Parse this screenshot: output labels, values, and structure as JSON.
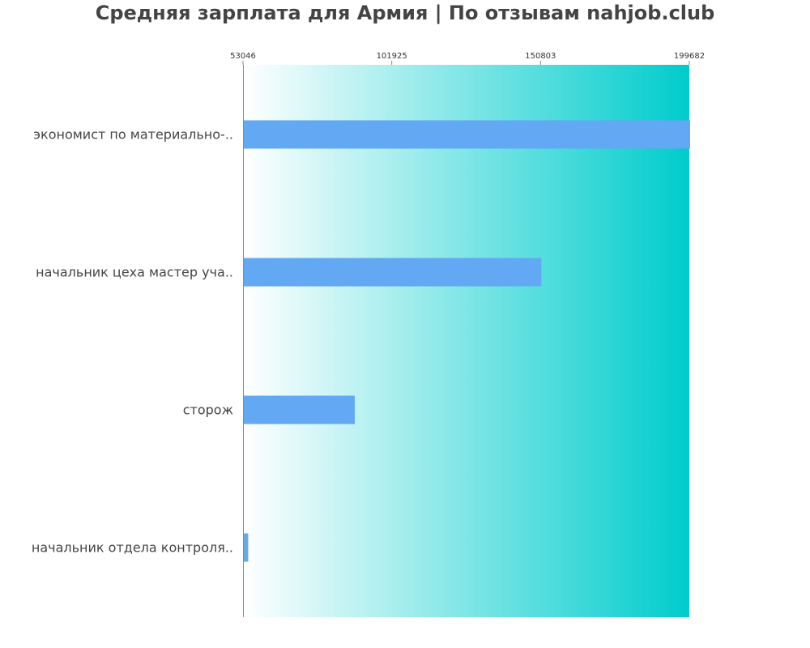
{
  "colors": {
    "bar": "#63a8f3",
    "bar_small": "#6aaae2",
    "gradient_start": "#ffffff",
    "gradient_end": "#00cccc",
    "axis": "#888888",
    "text": "#444444"
  },
  "chart_data": {
    "type": "bar",
    "orientation": "horizontal",
    "title": "Средняя зарплата для Армия | По отзывам nahjob.club",
    "xlabel": "",
    "ylabel": "",
    "xlim": [
      53046,
      199682
    ],
    "x_ticks": [
      53046,
      101925,
      150803,
      199682
    ],
    "x_tick_labels": [
      "53046",
      "101925",
      "150803",
      "199682"
    ],
    "x_tick_position": "top",
    "grid": false,
    "legend": "none",
    "categories": [
      "экономист по материально-..",
      "начальник цеха мастер уча..",
      "сторож",
      "начальник отдела контроля.."
    ],
    "values": [
      199682,
      150803,
      89500,
      54500
    ]
  }
}
